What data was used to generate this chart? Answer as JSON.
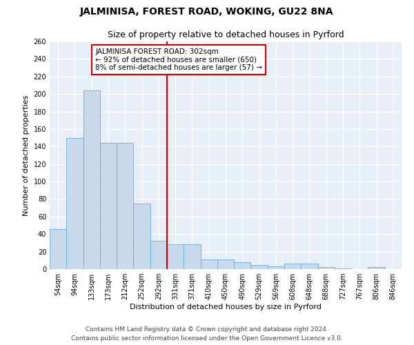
{
  "title": "JALMINISA, FOREST ROAD, WOKING, GU22 8NA",
  "subtitle": "Size of property relative to detached houses in Pyrford",
  "xlabel": "Distribution of detached houses by size in Pyrford",
  "ylabel": "Number of detached properties",
  "categories": [
    "54sqm",
    "94sqm",
    "133sqm",
    "173sqm",
    "212sqm",
    "252sqm",
    "292sqm",
    "331sqm",
    "371sqm",
    "410sqm",
    "450sqm",
    "490sqm",
    "529sqm",
    "569sqm",
    "608sqm",
    "648sqm",
    "688sqm",
    "727sqm",
    "767sqm",
    "806sqm",
    "846sqm"
  ],
  "values": [
    46,
    150,
    204,
    144,
    144,
    75,
    32,
    28,
    28,
    11,
    11,
    8,
    5,
    3,
    6,
    6,
    2,
    1,
    0,
    2
  ],
  "bar_color": "#c8d9ec",
  "bar_edge_color": "#6baed6",
  "marker_label": "JALMINISA FOREST ROAD: 302sqm",
  "annotation_line1": "← 92% of detached houses are smaller (650)",
  "annotation_line2": "8% of semi-detached houses are larger (57) →",
  "annotation_box_color": "#ffffff",
  "annotation_box_edge": "#cc0000",
  "vline_color": "#cc0000",
  "vline_x_index": 6.5,
  "ylim": [
    0,
    260
  ],
  "yticks": [
    0,
    20,
    40,
    60,
    80,
    100,
    120,
    140,
    160,
    180,
    200,
    220,
    240,
    260
  ],
  "footer1": "Contains HM Land Registry data © Crown copyright and database right 2024.",
  "footer2": "Contains public sector information licensed under the Open Government Licence v3.0.",
  "plot_bg_color": "#e8eef7",
  "grid_color": "#ffffff",
  "title_fontsize": 10,
  "subtitle_fontsize": 9,
  "ylabel_fontsize": 8,
  "xlabel_fontsize": 8,
  "tick_fontsize": 7,
  "annot_fontsize": 7.5,
  "footer_fontsize": 6.5
}
